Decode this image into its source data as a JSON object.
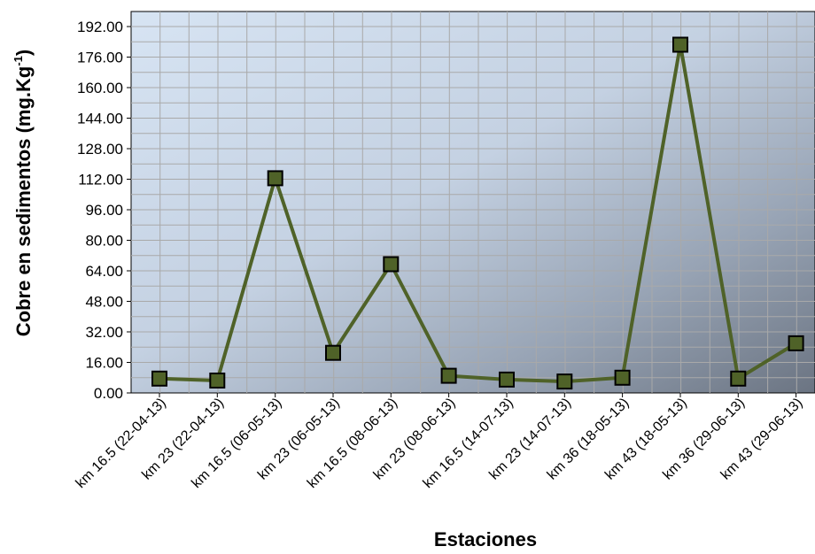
{
  "chart_data": {
    "type": "line",
    "categories": [
      "km 16.5 (22-04-13)",
      "km 23 (22-04-13)",
      "km 16.5 (06-05-13)",
      "km 23 (06-05-13)",
      "km 16.5 (08-06-13)",
      "km 23 (08-06-13)",
      "km 16.5 (14-07-13)",
      "km 23 (14-07-13)",
      "km 36 (18-05-13)",
      "km 43 (18-05-13)",
      "km 36 (29-06-13)",
      "km 43 (29-06-13)"
    ],
    "series": [
      {
        "values": [
          7.5,
          6.5,
          112.5,
          21.0,
          67.5,
          9.0,
          7.0,
          6.0,
          8.0,
          182.5,
          7.5,
          26.0
        ]
      }
    ],
    "y_ticks": [
      "0.00",
      "16.00",
      "32.00",
      "48.00",
      "64.00",
      "80.00",
      "96.00",
      "112.00",
      "128.00",
      "144.00",
      "160.00",
      "176.00",
      "192.00"
    ],
    "ylim": [
      0,
      200
    ],
    "xlabel": "Estaciones",
    "ylabel": "Cobre en sedimentos (mg.Kg",
    "ylabel_sup": "-1",
    "ylabel_close": ")",
    "grid": true,
    "line_color": "#4f6228",
    "marker_color": "#4f6228",
    "marker_edge": "#000000"
  }
}
